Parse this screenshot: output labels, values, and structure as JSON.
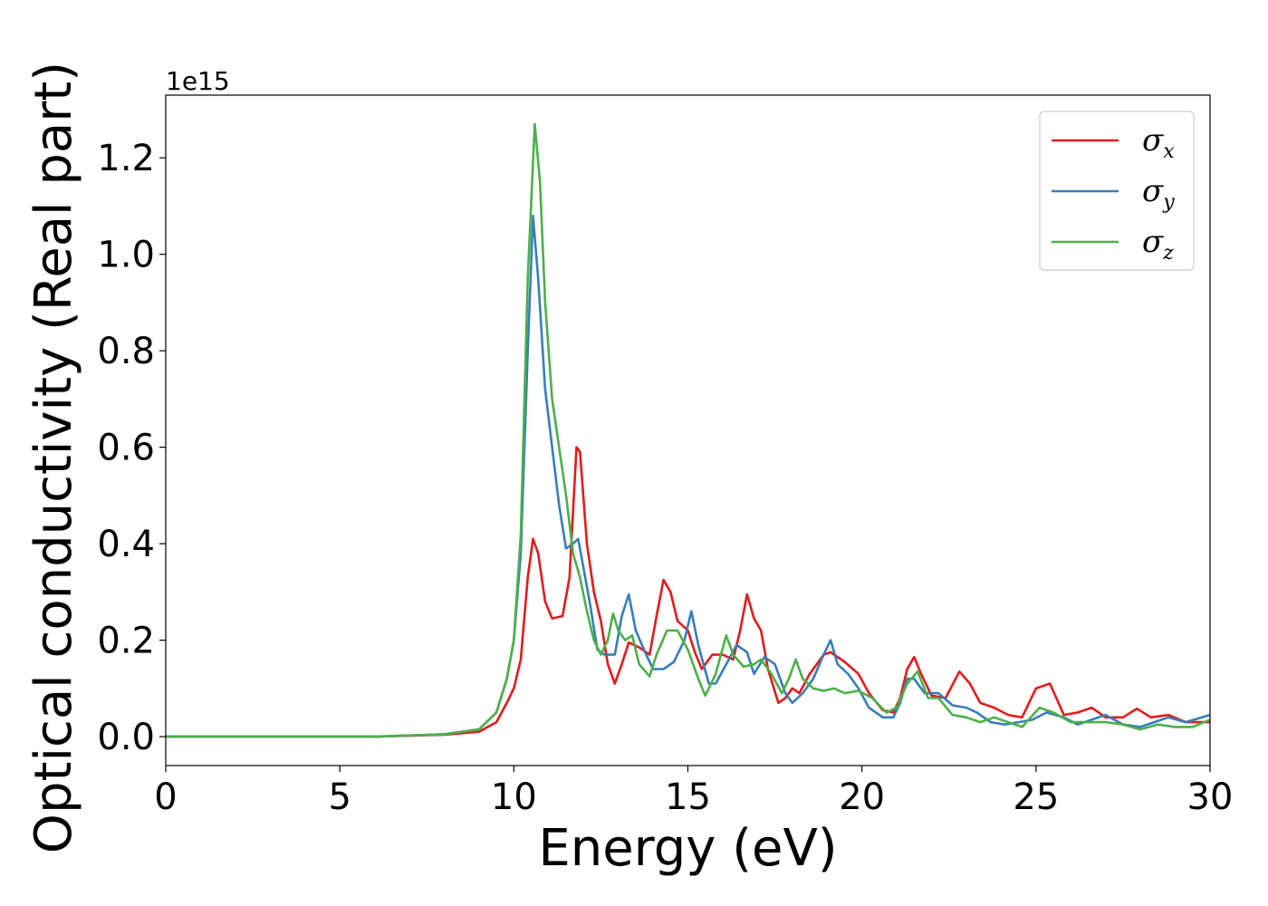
{
  "chart_data": {
    "type": "line",
    "title": "",
    "xlabel": "Energy (eV)",
    "ylabel": "Optical conductivity (Real part)",
    "y_offset_label": "1e15",
    "xlim": [
      0,
      30
    ],
    "ylim": [
      -0.06,
      1.33
    ],
    "x_ticks": [
      0,
      5,
      10,
      15,
      20,
      25,
      30
    ],
    "x_tick_labels": [
      "0",
      "5",
      "10",
      "15",
      "20",
      "25",
      "30"
    ],
    "y_ticks": [
      0.0,
      0.2,
      0.4,
      0.6,
      0.8,
      1.0,
      1.2
    ],
    "y_tick_labels": [
      "0.0",
      "0.2",
      "0.4",
      "0.6",
      "0.8",
      "1.0",
      "1.2"
    ],
    "grid": false,
    "legend_position": "top-right",
    "series": [
      {
        "name": "σx",
        "legend_symbol": "σ",
        "legend_subscript": "x",
        "color": "#e41a1c",
        "points": [
          [
            0,
            0
          ],
          [
            6,
            0
          ],
          [
            8,
            0.004
          ],
          [
            9,
            0.01
          ],
          [
            9.5,
            0.03
          ],
          [
            9.8,
            0.07
          ],
          [
            10,
            0.1
          ],
          [
            10.2,
            0.16
          ],
          [
            10.4,
            0.33
          ],
          [
            10.55,
            0.41
          ],
          [
            10.7,
            0.38
          ],
          [
            10.9,
            0.28
          ],
          [
            11.1,
            0.245
          ],
          [
            11.4,
            0.25
          ],
          [
            11.6,
            0.33
          ],
          [
            11.8,
            0.6
          ],
          [
            11.9,
            0.59
          ],
          [
            12.1,
            0.4
          ],
          [
            12.3,
            0.3
          ],
          [
            12.5,
            0.24
          ],
          [
            12.7,
            0.15
          ],
          [
            12.9,
            0.11
          ],
          [
            13.1,
            0.15
          ],
          [
            13.3,
            0.195
          ],
          [
            13.6,
            0.185
          ],
          [
            13.9,
            0.17
          ],
          [
            14.1,
            0.25
          ],
          [
            14.3,
            0.325
          ],
          [
            14.5,
            0.3
          ],
          [
            14.7,
            0.24
          ],
          [
            15.0,
            0.22
          ],
          [
            15.2,
            0.175
          ],
          [
            15.4,
            0.14
          ],
          [
            15.7,
            0.17
          ],
          [
            16.0,
            0.17
          ],
          [
            16.3,
            0.16
          ],
          [
            16.5,
            0.22
          ],
          [
            16.7,
            0.295
          ],
          [
            16.9,
            0.245
          ],
          [
            17.1,
            0.22
          ],
          [
            17.3,
            0.14
          ],
          [
            17.6,
            0.07
          ],
          [
            17.8,
            0.08
          ],
          [
            18.0,
            0.1
          ],
          [
            18.2,
            0.09
          ],
          [
            18.5,
            0.13
          ],
          [
            18.9,
            0.17
          ],
          [
            19.1,
            0.175
          ],
          [
            19.5,
            0.155
          ],
          [
            19.9,
            0.13
          ],
          [
            20.2,
            0.09
          ],
          [
            20.6,
            0.055
          ],
          [
            20.9,
            0.05
          ],
          [
            21.1,
            0.08
          ],
          [
            21.3,
            0.14
          ],
          [
            21.5,
            0.165
          ],
          [
            21.7,
            0.13
          ],
          [
            22.0,
            0.085
          ],
          [
            22.4,
            0.08
          ],
          [
            22.8,
            0.135
          ],
          [
            23.1,
            0.11
          ],
          [
            23.4,
            0.07
          ],
          [
            23.8,
            0.06
          ],
          [
            24.2,
            0.045
          ],
          [
            24.6,
            0.04
          ],
          [
            25.0,
            0.1
          ],
          [
            25.4,
            0.11
          ],
          [
            25.8,
            0.045
          ],
          [
            26.2,
            0.05
          ],
          [
            26.6,
            0.06
          ],
          [
            27.0,
            0.04
          ],
          [
            27.5,
            0.04
          ],
          [
            27.9,
            0.058
          ],
          [
            28.3,
            0.04
          ],
          [
            28.8,
            0.045
          ],
          [
            29.3,
            0.03
          ],
          [
            30,
            0.03
          ]
        ]
      },
      {
        "name": "σy",
        "legend_symbol": "σ",
        "legend_subscript": "y",
        "color": "#377eb8",
        "points": [
          [
            0,
            0
          ],
          [
            6,
            0
          ],
          [
            8,
            0.005
          ],
          [
            9,
            0.015
          ],
          [
            9.5,
            0.05
          ],
          [
            9.8,
            0.12
          ],
          [
            10.0,
            0.2
          ],
          [
            10.2,
            0.38
          ],
          [
            10.4,
            0.8
          ],
          [
            10.55,
            1.08
          ],
          [
            10.7,
            0.95
          ],
          [
            10.9,
            0.72
          ],
          [
            11.1,
            0.6
          ],
          [
            11.3,
            0.48
          ],
          [
            11.5,
            0.39
          ],
          [
            11.7,
            0.4
          ],
          [
            11.85,
            0.41
          ],
          [
            12.0,
            0.35
          ],
          [
            12.2,
            0.27
          ],
          [
            12.4,
            0.18
          ],
          [
            12.6,
            0.17
          ],
          [
            12.9,
            0.17
          ],
          [
            13.1,
            0.25
          ],
          [
            13.3,
            0.295
          ],
          [
            13.5,
            0.22
          ],
          [
            13.8,
            0.17
          ],
          [
            14.0,
            0.14
          ],
          [
            14.3,
            0.14
          ],
          [
            14.6,
            0.155
          ],
          [
            14.9,
            0.2
          ],
          [
            15.1,
            0.26
          ],
          [
            15.3,
            0.19
          ],
          [
            15.6,
            0.11
          ],
          [
            15.8,
            0.11
          ],
          [
            16.1,
            0.15
          ],
          [
            16.4,
            0.19
          ],
          [
            16.7,
            0.175
          ],
          [
            16.9,
            0.13
          ],
          [
            17.2,
            0.165
          ],
          [
            17.5,
            0.15
          ],
          [
            17.8,
            0.09
          ],
          [
            18.0,
            0.07
          ],
          [
            18.3,
            0.09
          ],
          [
            18.6,
            0.12
          ],
          [
            18.9,
            0.17
          ],
          [
            19.1,
            0.2
          ],
          [
            19.3,
            0.15
          ],
          [
            19.6,
            0.13
          ],
          [
            19.9,
            0.1
          ],
          [
            20.2,
            0.06
          ],
          [
            20.6,
            0.04
          ],
          [
            20.9,
            0.04
          ],
          [
            21.1,
            0.07
          ],
          [
            21.3,
            0.12
          ],
          [
            21.5,
            0.12
          ],
          [
            21.8,
            0.09
          ],
          [
            22.2,
            0.09
          ],
          [
            22.6,
            0.065
          ],
          [
            23.0,
            0.06
          ],
          [
            23.3,
            0.05
          ],
          [
            23.7,
            0.03
          ],
          [
            24.1,
            0.025
          ],
          [
            24.5,
            0.03
          ],
          [
            24.9,
            0.035
          ],
          [
            25.3,
            0.05
          ],
          [
            25.8,
            0.04
          ],
          [
            26.2,
            0.025
          ],
          [
            26.6,
            0.035
          ],
          [
            27.0,
            0.045
          ],
          [
            27.5,
            0.025
          ],
          [
            28.0,
            0.02
          ],
          [
            28.4,
            0.03
          ],
          [
            28.8,
            0.04
          ],
          [
            29.3,
            0.03
          ],
          [
            30,
            0.045
          ]
        ]
      },
      {
        "name": "σz",
        "legend_symbol": "σ",
        "legend_subscript": "z",
        "color": "#4daf4a",
        "points": [
          [
            0,
            0
          ],
          [
            6,
            0
          ],
          [
            8,
            0.005
          ],
          [
            9,
            0.015
          ],
          [
            9.5,
            0.05
          ],
          [
            9.8,
            0.12
          ],
          [
            10.0,
            0.2
          ],
          [
            10.2,
            0.42
          ],
          [
            10.4,
            0.95
          ],
          [
            10.6,
            1.27
          ],
          [
            10.75,
            1.15
          ],
          [
            10.9,
            0.9
          ],
          [
            11.1,
            0.7
          ],
          [
            11.3,
            0.6
          ],
          [
            11.5,
            0.5
          ],
          [
            11.7,
            0.38
          ],
          [
            11.9,
            0.33
          ],
          [
            12.1,
            0.26
          ],
          [
            12.3,
            0.2
          ],
          [
            12.5,
            0.17
          ],
          [
            12.7,
            0.2
          ],
          [
            12.85,
            0.255
          ],
          [
            13.0,
            0.22
          ],
          [
            13.2,
            0.2
          ],
          [
            13.4,
            0.21
          ],
          [
            13.6,
            0.15
          ],
          [
            13.9,
            0.125
          ],
          [
            14.1,
            0.17
          ],
          [
            14.4,
            0.22
          ],
          [
            14.7,
            0.22
          ],
          [
            15.0,
            0.18
          ],
          [
            15.3,
            0.12
          ],
          [
            15.5,
            0.085
          ],
          [
            15.8,
            0.13
          ],
          [
            16.1,
            0.21
          ],
          [
            16.3,
            0.17
          ],
          [
            16.6,
            0.145
          ],
          [
            16.9,
            0.15
          ],
          [
            17.1,
            0.16
          ],
          [
            17.4,
            0.13
          ],
          [
            17.7,
            0.09
          ],
          [
            17.9,
            0.12
          ],
          [
            18.1,
            0.16
          ],
          [
            18.3,
            0.12
          ],
          [
            18.6,
            0.1
          ],
          [
            18.9,
            0.095
          ],
          [
            19.2,
            0.1
          ],
          [
            19.5,
            0.09
          ],
          [
            19.9,
            0.095
          ],
          [
            20.3,
            0.08
          ],
          [
            20.7,
            0.05
          ],
          [
            21.0,
            0.06
          ],
          [
            21.3,
            0.11
          ],
          [
            21.6,
            0.135
          ],
          [
            21.9,
            0.08
          ],
          [
            22.2,
            0.08
          ],
          [
            22.6,
            0.045
          ],
          [
            23.0,
            0.04
          ],
          [
            23.4,
            0.03
          ],
          [
            23.8,
            0.04
          ],
          [
            24.2,
            0.03
          ],
          [
            24.6,
            0.02
          ],
          [
            25.1,
            0.06
          ],
          [
            25.5,
            0.05
          ],
          [
            26.0,
            0.03
          ],
          [
            26.5,
            0.03
          ],
          [
            27.0,
            0.03
          ],
          [
            27.5,
            0.025
          ],
          [
            28.0,
            0.015
          ],
          [
            28.5,
            0.025
          ],
          [
            29.0,
            0.02
          ],
          [
            29.5,
            0.02
          ],
          [
            30,
            0.035
          ]
        ]
      }
    ]
  }
}
